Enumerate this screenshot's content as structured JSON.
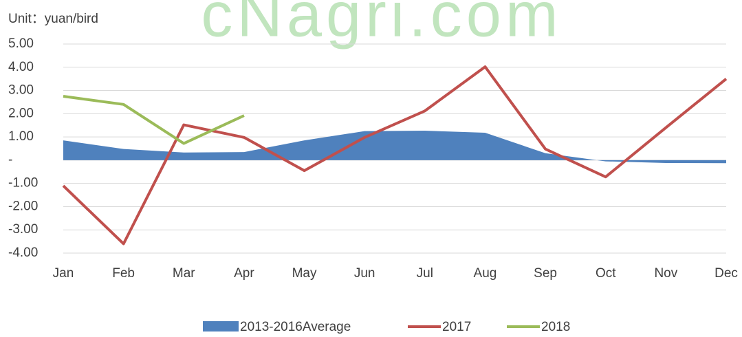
{
  "chart_data": {
    "type": "line",
    "watermark": "cNagri.com",
    "unit_label": "Unit：yuan/bird",
    "categories": [
      "Jan",
      "Feb",
      "Mar",
      "Apr",
      "May",
      "Jun",
      "Jul",
      "Aug",
      "Sep",
      "Oct",
      "Nov",
      "Dec"
    ],
    "series": [
      {
        "name": "2013-2016Average",
        "kind": "area",
        "color": "#4f81bd",
        "values": [
          0.85,
          0.48,
          0.33,
          0.35,
          0.85,
          1.25,
          1.27,
          1.18,
          0.3,
          -0.05,
          -0.12,
          -0.13
        ]
      },
      {
        "name": "2017",
        "kind": "line",
        "color": "#c0504d",
        "values": [
          -1.1,
          -3.6,
          1.52,
          0.98,
          -0.45,
          0.98,
          2.12,
          4.02,
          0.48,
          -0.72,
          1.4,
          3.5
        ]
      },
      {
        "name": "2018",
        "kind": "line",
        "color": "#9bbb59",
        "values": [
          2.75,
          2.4,
          0.72,
          1.92,
          null,
          null,
          null,
          null,
          null,
          null,
          null,
          null
        ]
      }
    ],
    "ylim": [
      -4,
      5
    ],
    "yticks": [
      {
        "value": 5,
        "label": "5.00"
      },
      {
        "value": 4,
        "label": "4.00"
      },
      {
        "value": 3,
        "label": "3.00"
      },
      {
        "value": 2,
        "label": "2.00"
      },
      {
        "value": 1,
        "label": "1.00"
      },
      {
        "value": 0,
        "label": "-"
      },
      {
        "value": -1,
        "label": "-1.00"
      },
      {
        "value": -2,
        "label": "-2.00"
      },
      {
        "value": -3,
        "label": "-3.00"
      },
      {
        "value": -4,
        "label": "-4.00"
      }
    ],
    "grid": true,
    "legend": "bottom"
  }
}
